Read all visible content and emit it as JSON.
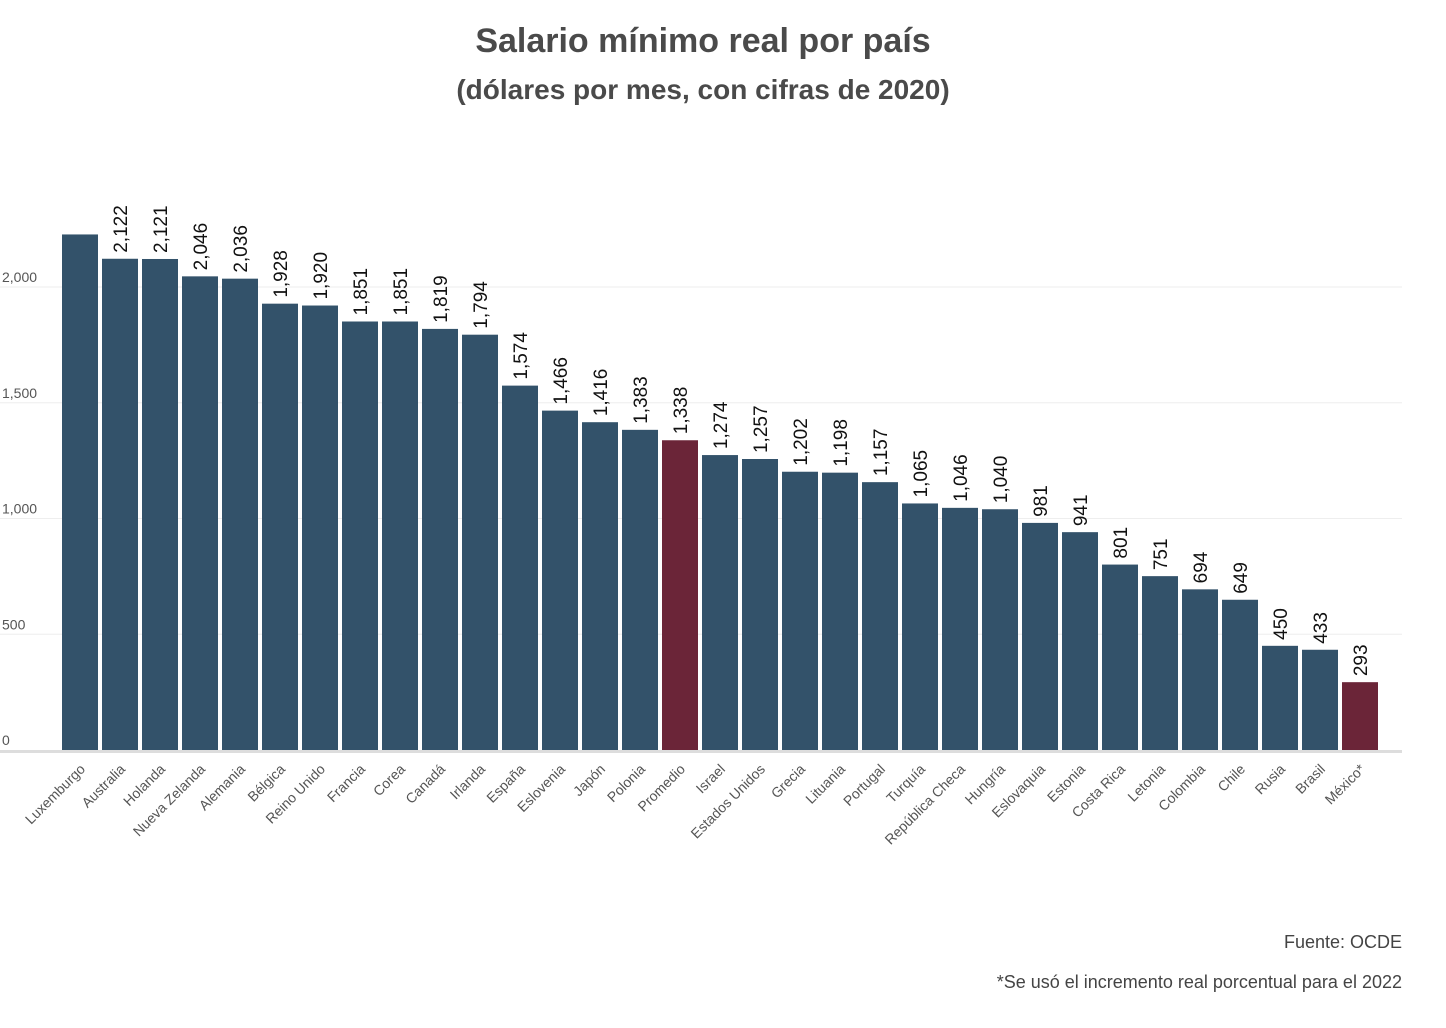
{
  "chart_data": {
    "type": "bar",
    "title": "Salario mínimo real por país",
    "subtitle": "(dólares por mes, con cifras de 2020)",
    "categories": [
      "Luxemburgo",
      "Australia",
      "Holanda",
      "Nueva Zelanda",
      "Alemania",
      "Bélgica",
      "Reino Unido",
      "Francia",
      "Corea",
      "Canadá",
      "Irlanda",
      "España",
      "Eslovenia",
      "Japón",
      "Polonia",
      "Promedio",
      "Israel",
      "Estados Unidos",
      "Grecia",
      "Lituania",
      "Portugal",
      "Turquía",
      "República Checa",
      "Hungría",
      "Eslovaquia",
      "Estonia",
      "Costa Rica",
      "Letonia",
      "Colombia",
      "Chile",
      "Rusia",
      "Brasil",
      "México*"
    ],
    "values": [
      2227,
      2122,
      2121,
      2046,
      2036,
      1928,
      1920,
      1851,
      1851,
      1819,
      1794,
      1574,
      1466,
      1416,
      1383,
      1338,
      1274,
      1257,
      1202,
      1198,
      1157,
      1065,
      1046,
      1040,
      981,
      941,
      801,
      751,
      694,
      649,
      450,
      433,
      293
    ],
    "data_labels": [
      "",
      "2,122",
      "2,121",
      "2,046",
      "2,036",
      "1,928",
      "1,920",
      "1,851",
      "1,851",
      "1,819",
      "1,794",
      "1,574",
      "1,466",
      "1,416",
      "1,383",
      "1,338",
      "1,274",
      "1,257",
      "1,202",
      "1,198",
      "1,157",
      "1,065",
      "1,046",
      "1,040",
      "981",
      "941",
      "801",
      "751",
      "694",
      "649",
      "450",
      "433",
      "293"
    ],
    "yticks": [
      0,
      500,
      1000,
      1500,
      2000
    ],
    "ytick_labels": [
      "0",
      "500",
      "1,000",
      "1,500",
      "2,000"
    ],
    "ylim": [
      0,
      2300
    ],
    "grid": true,
    "colors": {
      "default": "#33526a",
      "highlight": "#6b2538"
    },
    "highlight_categories": [
      "Promedio",
      "México*"
    ]
  },
  "footer": {
    "source": "Fuente: OCDE",
    "note": "*Se usó el incremento real porcentual para el 2022"
  }
}
